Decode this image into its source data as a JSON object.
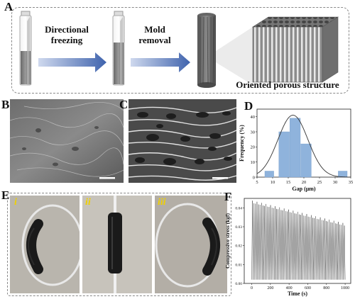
{
  "panels": {
    "a": "A",
    "b": "B",
    "c": "C",
    "d": "D",
    "e": "E",
    "f": "F"
  },
  "process": {
    "step1_line1": "Directional",
    "step1_line2": "freezing",
    "step2_line1": "Mold",
    "step2_line2": "removal",
    "result": "Oriented porous structure"
  },
  "photos": {
    "sub1": "i",
    "sub2": "ii",
    "sub3": "iii"
  },
  "colors": {
    "arrow": "#4a6db0",
    "histogram_bar": "#8fb3dc",
    "fit_line": "#333333",
    "sub_label": "#f0d000"
  },
  "chart_data": [
    {
      "type": "bar",
      "xlabel": "Gap (μm)",
      "ylabel": "Frequency (%)",
      "xlim": [
        5,
        35
      ],
      "ylim": [
        0,
        45
      ],
      "xticks": [
        "5",
        "10",
        "15",
        "20",
        "25",
        "30",
        "35"
      ],
      "yticks": [
        "0",
        "10",
        "20",
        "30",
        "40"
      ],
      "bins": [
        {
          "from": 7.5,
          "to": 10.5,
          "value": 4
        },
        {
          "from": 12,
          "to": 15.5,
          "value": 30
        },
        {
          "from": 15.5,
          "to": 19,
          "value": 39
        },
        {
          "from": 19,
          "to": 22.5,
          "value": 22
        },
        {
          "from": 31,
          "to": 34,
          "value": 4
        }
      ],
      "fit": {
        "type": "gaussian",
        "mean": 16.5,
        "sigma": 4.8,
        "peak": 41
      }
    },
    {
      "type": "line",
      "xlabel": "Time (s)",
      "ylabel": "Compressive stress (kgf)",
      "xlim": [
        -80,
        1060
      ],
      "ylim": [
        0,
        0.045
      ],
      "xticks": [
        "0",
        "200",
        "400",
        "600",
        "800",
        "1000"
      ],
      "yticks": [
        "0.00",
        "0.01",
        "0.02",
        "0.03",
        "0.04"
      ],
      "cycles": 62,
      "peak_start": 0.043,
      "peak_end": 0.031,
      "valley": 0.002,
      "time_span": [
        0,
        1000
      ]
    }
  ]
}
